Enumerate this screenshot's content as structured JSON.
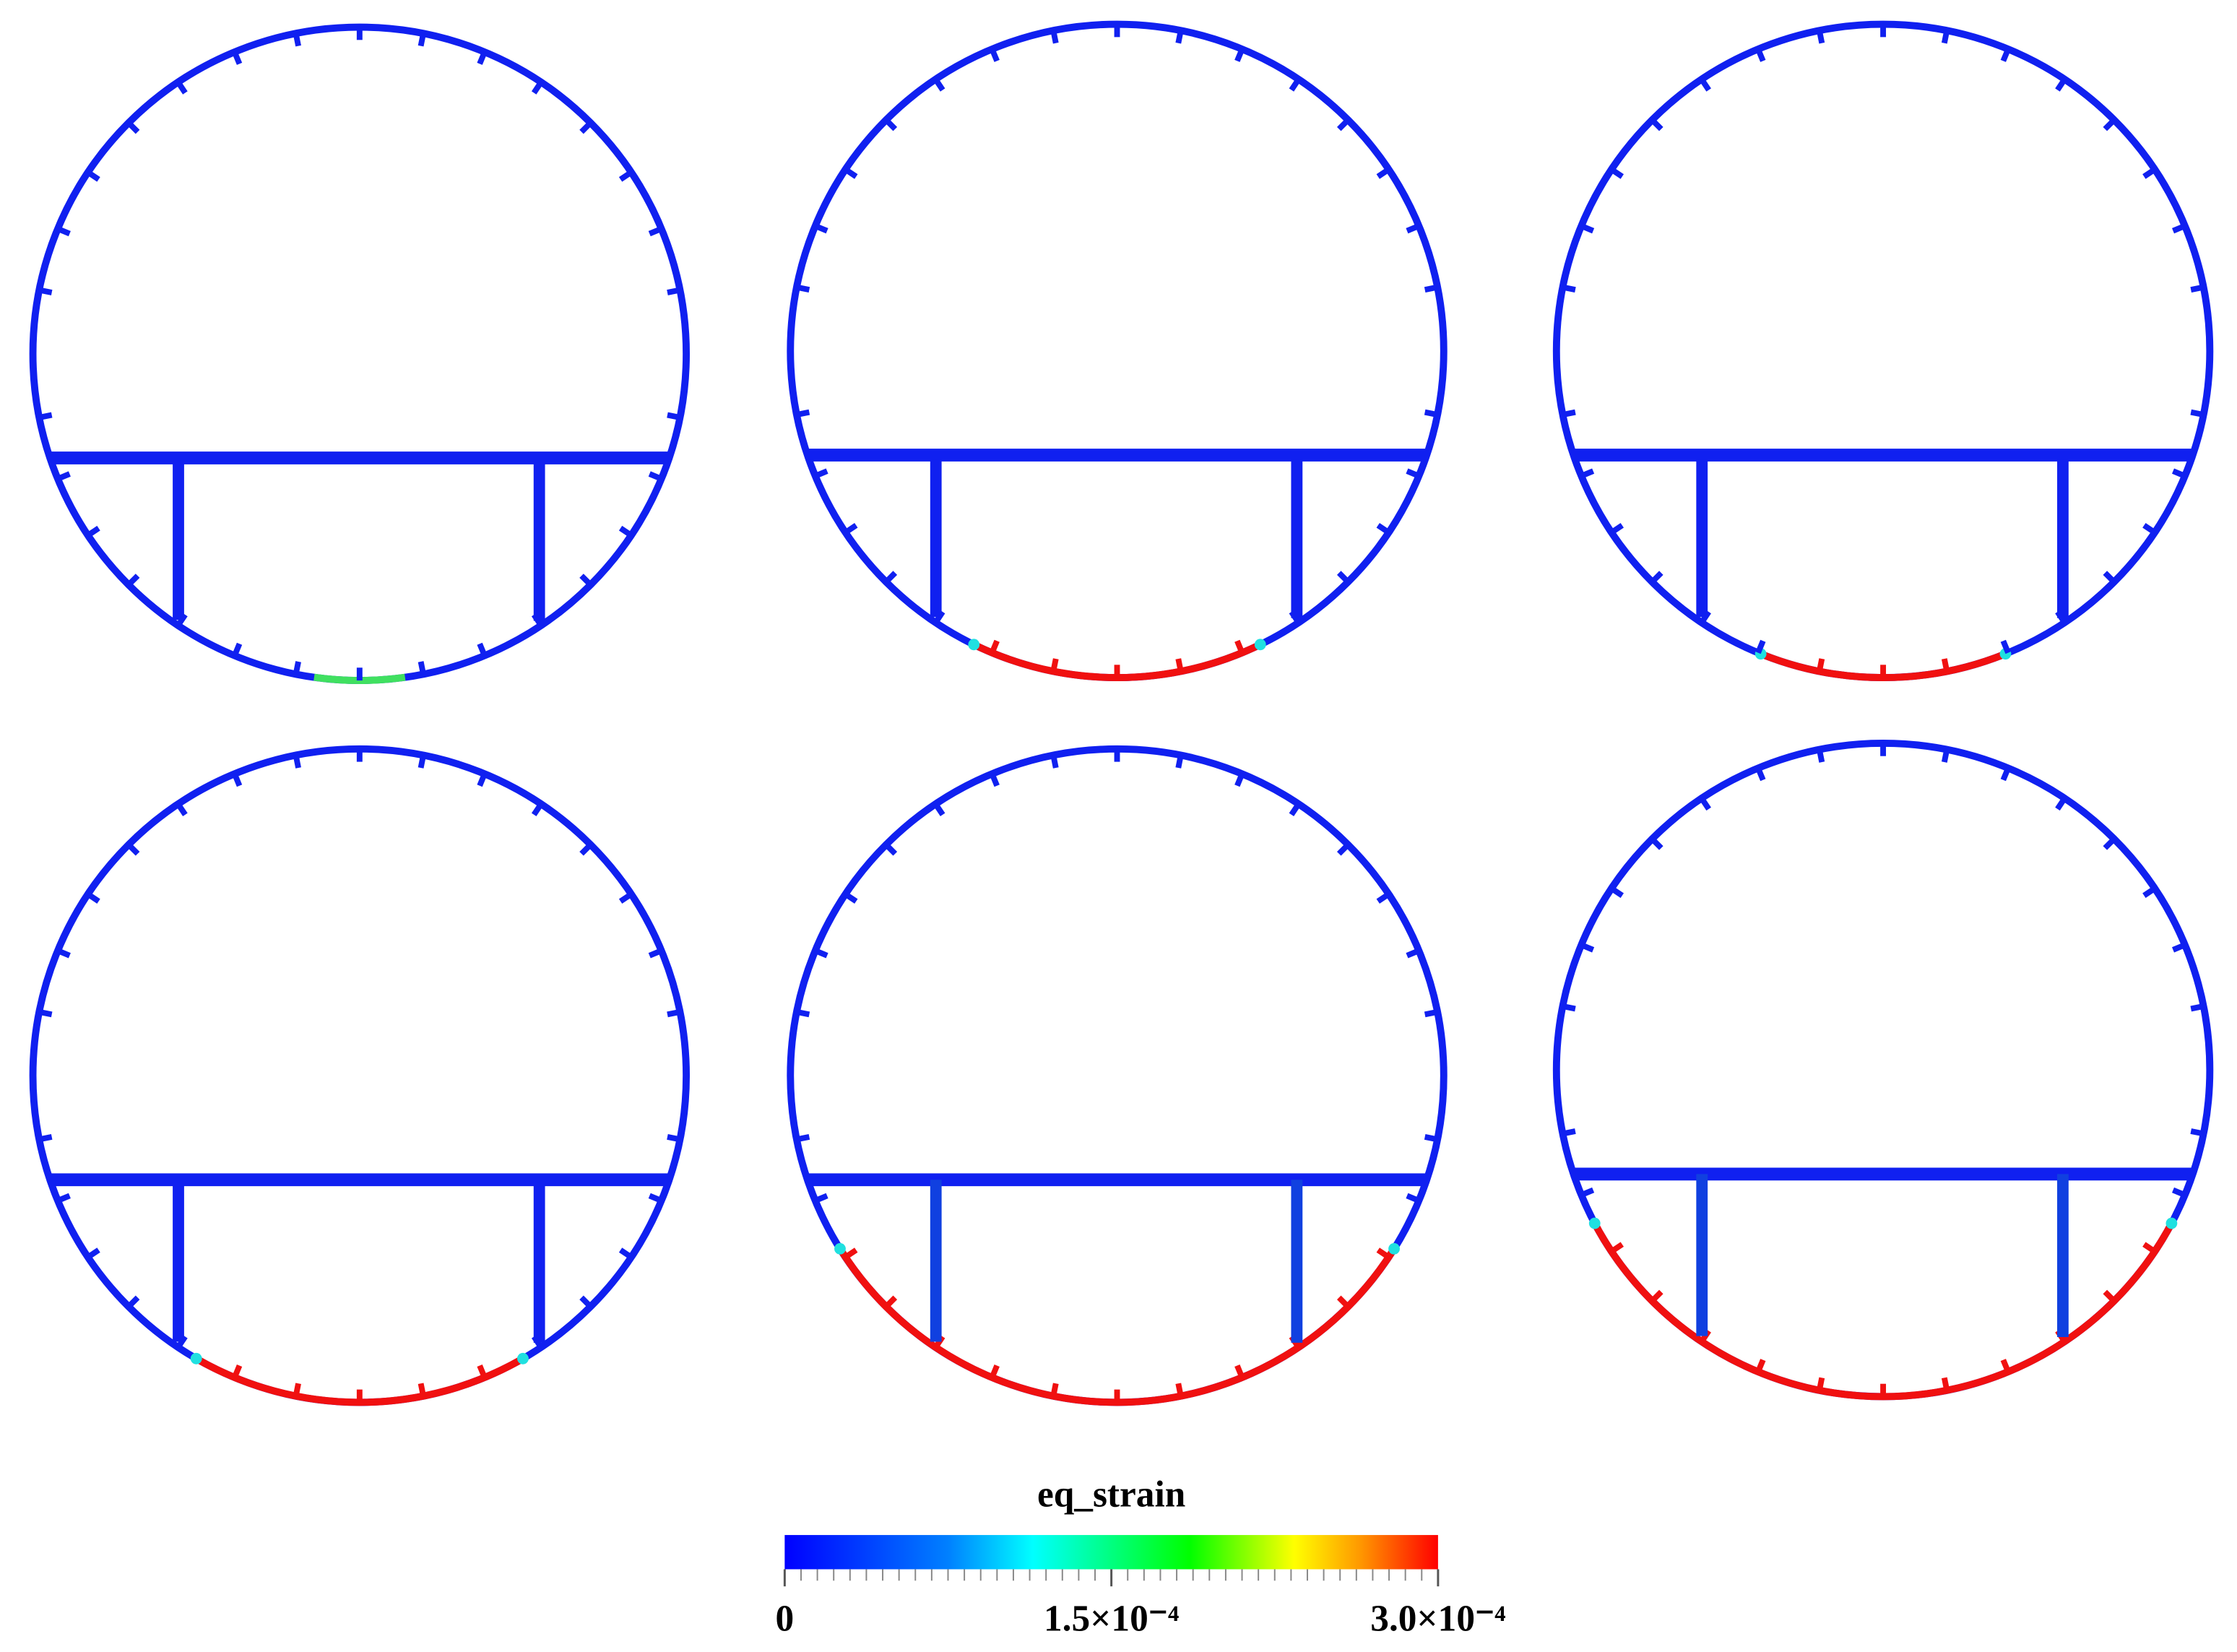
{
  "colorbar": {
    "title": "eq_strain",
    "range": [
      0,
      0.0003
    ],
    "ticks": [
      0,
      {
        "value": 0.00015,
        "label": "1.5×10⁻⁴"
      },
      {
        "value": 0.0003,
        "label": "3.0×10⁻⁴"
      }
    ]
  }
}
